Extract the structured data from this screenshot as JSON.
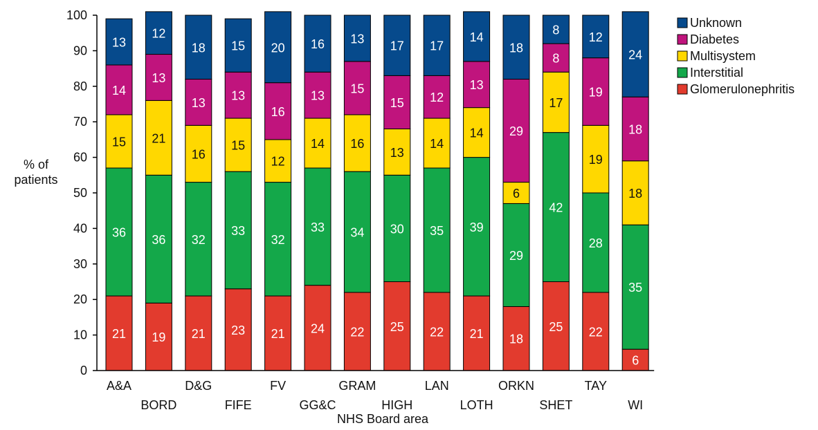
{
  "chart_data": {
    "type": "bar",
    "stacked": true,
    "ylabel": [
      "% of",
      "patients"
    ],
    "xlabel": "NHS Board area",
    "ylim": [
      0,
      100
    ],
    "yticks": [
      0,
      10,
      20,
      30,
      40,
      50,
      60,
      70,
      80,
      90,
      100
    ],
    "categories": [
      "A&A",
      "BORD",
      "D&G",
      "FIFE",
      "FV",
      "GG&C",
      "GRAM",
      "HIGH",
      "LAN",
      "LOTH",
      "ORKN",
      "SHET",
      "TAY",
      "WI"
    ],
    "series": [
      {
        "name": "Glomerulonephritis",
        "color": "#e23b2e",
        "label_color": "#ffffff",
        "values": [
          21,
          19,
          21,
          23,
          21,
          24,
          22,
          25,
          22,
          21,
          18,
          25,
          22,
          6
        ]
      },
      {
        "name": "Interstitial",
        "color": "#14a84a",
        "label_color": "#ffffff",
        "values": [
          36,
          36,
          32,
          33,
          32,
          33,
          34,
          30,
          35,
          39,
          29,
          42,
          28,
          35
        ]
      },
      {
        "name": "Multisystem",
        "color": "#ffd800",
        "label_color": "#111111",
        "values": [
          15,
          21,
          16,
          15,
          12,
          14,
          16,
          13,
          14,
          14,
          6,
          17,
          19,
          18
        ]
      },
      {
        "name": "Diabetes",
        "color": "#c0147d",
        "label_color": "#ffffff",
        "values": [
          14,
          13,
          13,
          13,
          16,
          13,
          15,
          15,
          12,
          13,
          29,
          8,
          19,
          18
        ]
      },
      {
        "name": "Unknown",
        "color": "#064a8c",
        "label_color": "#ffffff",
        "values": [
          13,
          12,
          18,
          15,
          20,
          16,
          13,
          17,
          17,
          14,
          18,
          8,
          12,
          24
        ]
      }
    ],
    "legend_order": [
      "Unknown",
      "Diabetes",
      "Multisystem",
      "Interstitial",
      "Glomerulonephritis"
    ],
    "legend_position": "top-right",
    "grid": false
  }
}
